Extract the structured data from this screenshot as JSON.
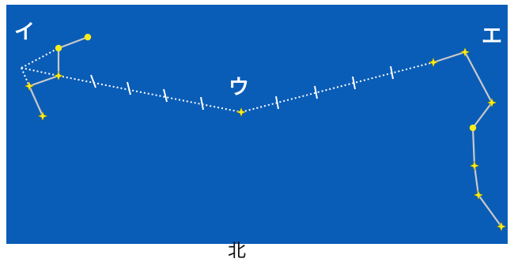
{
  "colors": {
    "sky": "#0a5db7",
    "star": "#f7ec1c",
    "line": "#c9c9c9",
    "dotted": "#ffffff"
  },
  "labels": {
    "i": "イ",
    "u": "ウ",
    "e": "エ",
    "north": "北"
  }
}
